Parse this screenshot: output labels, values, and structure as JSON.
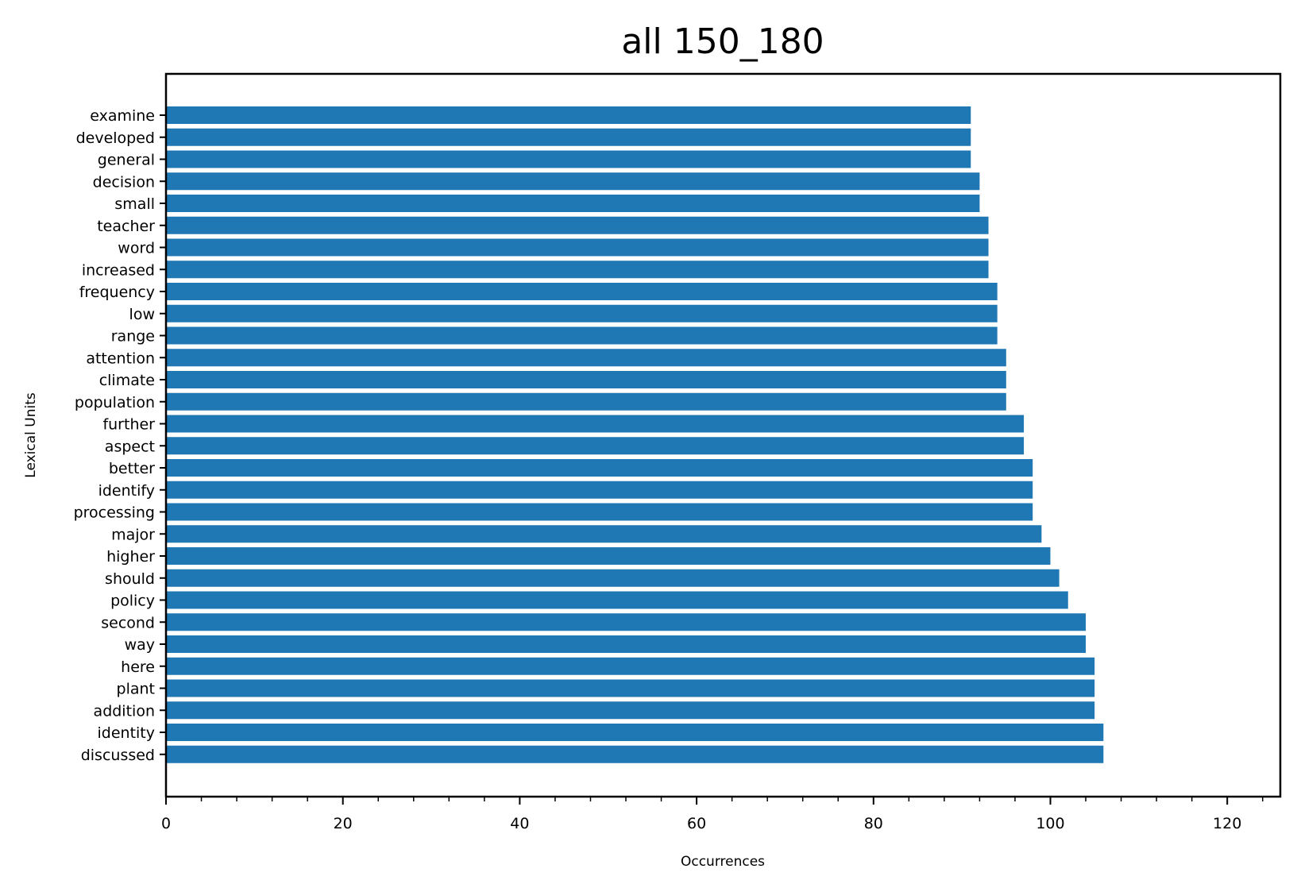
{
  "chart_data": {
    "type": "bar",
    "orientation": "horizontal",
    "title": "all 150_180",
    "xlabel": "Occurrences",
    "ylabel": "Lexical Units",
    "xlim": [
      0,
      126
    ],
    "xticks": [
      "0",
      "20",
      "40",
      "60",
      "80",
      "100",
      "120"
    ],
    "grid": false,
    "bar_color": "#1f77b4",
    "categories": [
      "examine",
      "developed",
      "general",
      "decision",
      "small",
      "teacher",
      "word",
      "increased",
      "frequency",
      "low",
      "range",
      "attention",
      "climate",
      "population",
      "further",
      "aspect",
      "better",
      "identify",
      "processing",
      "major",
      "higher",
      "should",
      "policy",
      "second",
      "way",
      "here",
      "plant",
      "addition",
      "identity",
      "discussed"
    ],
    "values": [
      91,
      91,
      91,
      92,
      92,
      93,
      93,
      93,
      94,
      94,
      94,
      95,
      95,
      95,
      97,
      97,
      98,
      98,
      98,
      99,
      100,
      101,
      102,
      104,
      104,
      105,
      105,
      105,
      106,
      106
    ]
  }
}
